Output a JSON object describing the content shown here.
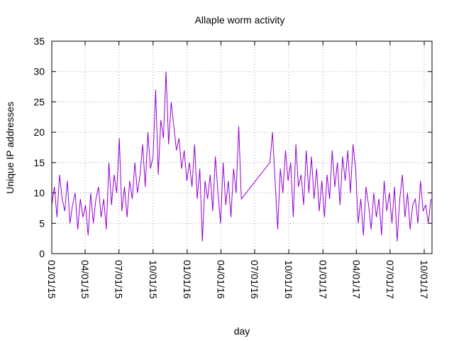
{
  "chart_data": {
    "type": "line",
    "title": "Allaple worm activity",
    "x_label": "day",
    "y_label": "Unique IP addresses",
    "x": [
      "2015-01-01",
      "2015-01-08",
      "2015-01-15",
      "2015-01-22",
      "2015-01-29",
      "2015-02-05",
      "2015-02-12",
      "2015-02-19",
      "2015-02-26",
      "2015-03-05",
      "2015-03-12",
      "2015-03-19",
      "2015-03-26",
      "2015-04-02",
      "2015-04-09",
      "2015-04-16",
      "2015-04-23",
      "2015-04-30",
      "2015-05-07",
      "2015-05-14",
      "2015-05-21",
      "2015-05-28",
      "2015-06-04",
      "2015-06-11",
      "2015-06-18",
      "2015-06-25",
      "2015-07-02",
      "2015-07-09",
      "2015-07-16",
      "2015-07-23",
      "2015-07-30",
      "2015-08-06",
      "2015-08-13",
      "2015-08-20",
      "2015-08-27",
      "2015-09-03",
      "2015-09-10",
      "2015-09-17",
      "2015-09-24",
      "2015-10-01",
      "2015-10-08",
      "2015-10-15",
      "2015-10-22",
      "2015-10-29",
      "2015-11-05",
      "2015-11-12",
      "2015-11-19",
      "2015-11-26",
      "2015-12-03",
      "2015-12-10",
      "2015-12-17",
      "2015-12-24",
      "2015-12-31",
      "2016-01-07",
      "2016-01-14",
      "2016-01-21",
      "2016-01-28",
      "2016-02-04",
      "2016-02-11",
      "2016-02-18",
      "2016-02-25",
      "2016-03-03",
      "2016-03-10",
      "2016-03-17",
      "2016-03-24",
      "2016-03-31",
      "2016-04-07",
      "2016-04-14",
      "2016-04-21",
      "2016-04-28",
      "2016-05-05",
      "2016-05-12",
      "2016-05-19",
      "2016-05-26",
      "2016-08-11",
      "2016-08-18",
      "2016-08-25",
      "2016-09-01",
      "2016-09-08",
      "2016-09-15",
      "2016-09-22",
      "2016-09-29",
      "2016-10-06",
      "2016-10-13",
      "2016-10-20",
      "2016-10-27",
      "2016-11-03",
      "2016-11-10",
      "2016-11-17",
      "2016-11-24",
      "2016-12-01",
      "2016-12-08",
      "2016-12-15",
      "2016-12-22",
      "2016-12-29",
      "2017-01-05",
      "2017-01-12",
      "2017-01-19",
      "2017-01-26",
      "2017-02-02",
      "2017-02-09",
      "2017-02-16",
      "2017-02-23",
      "2017-03-02",
      "2017-03-09",
      "2017-03-16",
      "2017-03-23",
      "2017-03-30",
      "2017-04-06",
      "2017-04-13",
      "2017-04-20",
      "2017-04-27",
      "2017-05-04",
      "2017-05-11",
      "2017-05-18",
      "2017-05-25",
      "2017-06-01",
      "2017-06-08",
      "2017-06-15",
      "2017-06-22",
      "2017-06-29",
      "2017-07-06",
      "2017-07-13",
      "2017-07-20",
      "2017-07-27",
      "2017-08-03",
      "2017-08-10",
      "2017-08-17",
      "2017-08-24",
      "2017-08-31",
      "2017-09-07",
      "2017-09-14",
      "2017-09-21",
      "2017-09-28",
      "2017-10-05",
      "2017-10-12",
      "2017-10-19"
    ],
    "series": [
      {
        "name": "Unique IP addresses",
        "color": "#9400d3",
        "values": [
          8,
          11,
          6,
          13,
          9,
          7,
          12,
          5,
          8,
          10,
          4,
          9,
          6,
          8,
          3,
          10,
          5,
          9,
          11,
          6,
          9,
          4,
          15,
          8,
          13,
          10,
          19,
          7,
          11,
          6,
          12,
          9,
          15,
          10,
          13,
          18,
          11,
          20,
          14,
          16,
          27,
          13,
          22,
          19,
          30,
          18,
          25,
          21,
          17,
          19,
          14,
          17,
          12,
          15,
          11,
          18,
          9,
          14,
          2,
          12,
          9,
          13,
          7,
          16,
          10,
          5,
          15,
          8,
          12,
          6,
          14,
          10,
          21,
          9,
          15,
          20,
          12,
          4,
          14,
          10,
          17,
          12,
          15,
          6,
          18,
          11,
          13,
          8,
          17,
          10,
          16,
          9,
          14,
          7,
          12,
          6,
          13,
          9,
          17,
          11,
          15,
          8,
          16,
          12,
          17,
          10,
          18,
          14,
          5,
          9,
          3,
          11,
          8,
          4,
          10,
          6,
          9,
          3,
          12,
          7,
          10,
          5,
          11,
          2,
          9,
          13,
          6,
          10,
          4,
          8,
          9,
          5,
          12,
          7,
          8,
          5,
          9
        ]
      }
    ],
    "xlim": [
      "2015-01-01",
      "2017-10-22"
    ],
    "xticks": [
      {
        "value": "2015-01-01",
        "label": "01/01/15"
      },
      {
        "value": "2015-04-01",
        "label": "04/01/15"
      },
      {
        "value": "2015-07-01",
        "label": "07/01/15"
      },
      {
        "value": "2015-10-01",
        "label": "10/01/15"
      },
      {
        "value": "2016-01-01",
        "label": "01/01/16"
      },
      {
        "value": "2016-04-01",
        "label": "04/01/16"
      },
      {
        "value": "2016-07-01",
        "label": "07/01/16"
      },
      {
        "value": "2016-10-01",
        "label": "10/01/16"
      },
      {
        "value": "2017-01-01",
        "label": "01/01/17"
      },
      {
        "value": "2017-04-01",
        "label": "04/01/17"
      },
      {
        "value": "2017-07-01",
        "label": "07/01/17"
      },
      {
        "value": "2017-10-01",
        "label": "10/01/17"
      }
    ],
    "ylim": [
      0,
      35
    ],
    "yticks": [
      0,
      5,
      10,
      15,
      20,
      25,
      30,
      35
    ],
    "grid": true
  }
}
